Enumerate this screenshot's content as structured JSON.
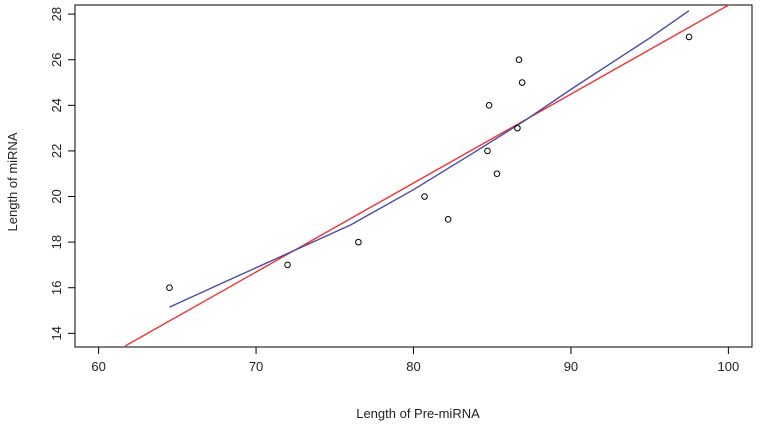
{
  "chart_data": {
    "type": "scatter",
    "title": "",
    "xlabel": "Length of Pre-miRNA",
    "ylabel": "Length of miRNA",
    "xlim": [
      58.5,
      101.5
    ],
    "ylim": [
      13.4,
      28.4
    ],
    "xticks": [
      60,
      70,
      80,
      90,
      100
    ],
    "yticks": [
      14,
      16,
      18,
      20,
      22,
      24,
      26,
      28
    ],
    "grid": false,
    "legend": "none",
    "points": [
      {
        "x": 64.5,
        "y": 16
      },
      {
        "x": 72,
        "y": 17
      },
      {
        "x": 76.5,
        "y": 18
      },
      {
        "x": 80.7,
        "y": 20
      },
      {
        "x": 82.2,
        "y": 19
      },
      {
        "x": 84.7,
        "y": 22
      },
      {
        "x": 84.8,
        "y": 24
      },
      {
        "x": 85.3,
        "y": 21
      },
      {
        "x": 86.6,
        "y": 23
      },
      {
        "x": 86.7,
        "y": 26
      },
      {
        "x": 86.9,
        "y": 25
      },
      {
        "x": 97.5,
        "y": 27
      }
    ],
    "lines": [
      {
        "kind": "linear-fit",
        "color": "#ee3333",
        "x": [
          61.7,
          100.4
        ],
        "y": [
          13.45,
          28.55
        ]
      },
      {
        "kind": "smooth-fit",
        "color": "#4a4aa8",
        "x": [
          64.5,
          68,
          72,
          76,
          80,
          84,
          87,
          90,
          93,
          95,
          97.5
        ],
        "y": [
          15.15,
          16.25,
          17.5,
          18.75,
          20.3,
          22.0,
          23.3,
          24.7,
          26.05,
          26.95,
          28.15
        ]
      }
    ]
  }
}
